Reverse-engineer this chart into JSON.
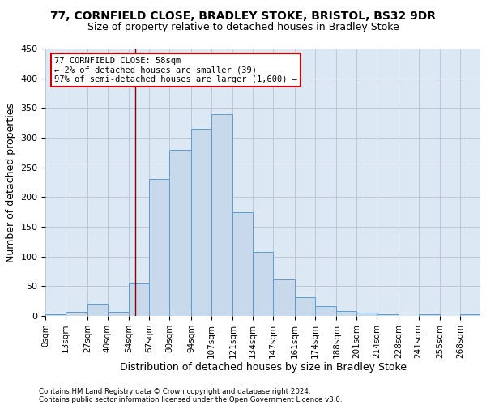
{
  "title1": "77, CORNFIELD CLOSE, BRADLEY STOKE, BRISTOL, BS32 9DR",
  "title2": "Size of property relative to detached houses in Bradley Stoke",
  "xlabel": "Distribution of detached houses by size in Bradley Stoke",
  "ylabel": "Number of detached properties",
  "footnote1": "Contains HM Land Registry data © Crown copyright and database right 2024.",
  "footnote2": "Contains public sector information licensed under the Open Government Licence v3.0.",
  "bin_edges": [
    0,
    13,
    27,
    40,
    54,
    67,
    80,
    94,
    107,
    121,
    134,
    147,
    161,
    174,
    188,
    201,
    214,
    228,
    241,
    255,
    268,
    281
  ],
  "bar_heights": [
    3,
    7,
    20,
    7,
    55,
    230,
    280,
    315,
    340,
    175,
    108,
    62,
    32,
    17,
    8,
    5,
    3,
    0,
    3,
    0,
    3
  ],
  "bar_color": "#c9d9ec",
  "bar_edge_color": "#5b9bd5",
  "property_size": 58,
  "annotation_line1": "77 CORNFIELD CLOSE: 58sqm",
  "annotation_line2": "← 2% of detached houses are smaller (39)",
  "annotation_line3": "97% of semi-detached houses are larger (1,600) →",
  "annotation_box_color": "#ffffff",
  "annotation_box_edge_color": "#cc0000",
  "vline_color": "#8b0000",
  "ylim": [
    0,
    450
  ],
  "xlim": [
    0,
    281
  ],
  "background_color": "#ffffff",
  "ax_background": "#dde8f5",
  "grid_color": "#c0c8d8",
  "tick_label_fontsize": 7.5,
  "ylabel_fontsize": 9,
  "xlabel_fontsize": 9,
  "title1_fontsize": 10,
  "title2_fontsize": 9,
  "footnote_fontsize": 6.2
}
